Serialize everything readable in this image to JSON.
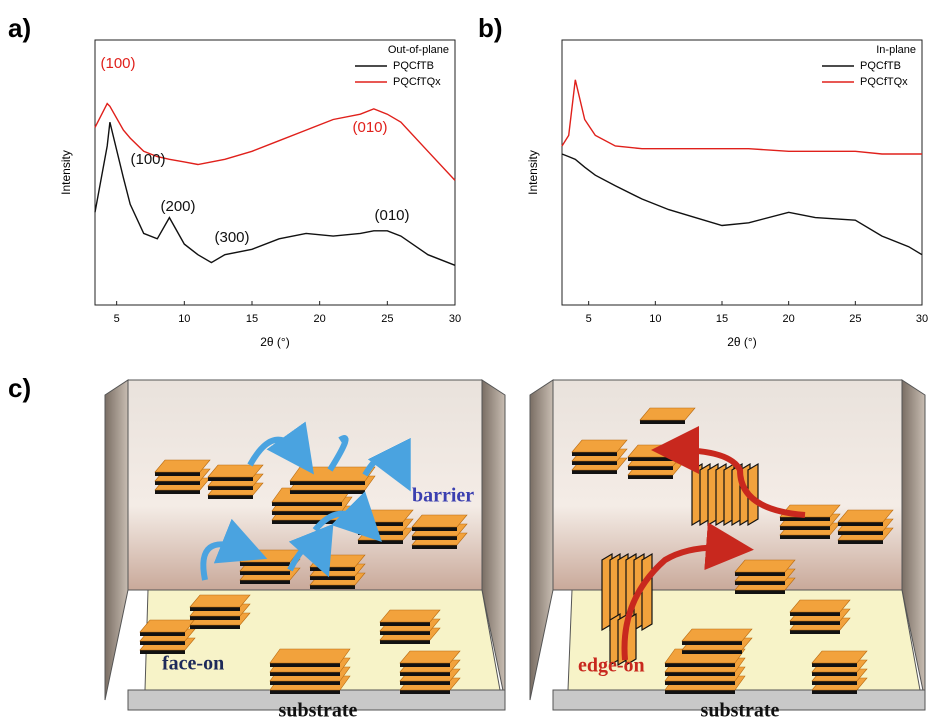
{
  "panels": {
    "a": "a)",
    "b": "b)",
    "c": "c)"
  },
  "chart_data": [
    {
      "type": "line",
      "xlabel": "2θ (°)",
      "ylabel": "Intensity",
      "xlim": [
        3.4,
        30
      ],
      "ylim": [
        0,
        100
      ],
      "xticks": [
        5,
        10,
        15,
        20,
        25,
        30
      ],
      "legend_title": "Out-of-plane",
      "legend": "upper right",
      "x": [
        3.4,
        4.3,
        4.5,
        5.5,
        6,
        7,
        8,
        8.9,
        10,
        11,
        12,
        13,
        15,
        17,
        19,
        21,
        23,
        24,
        25,
        26,
        28,
        30
      ],
      "series": [
        {
          "name": "PQCfTB",
          "color": "#111111",
          "values": [
            35,
            60,
            69,
            48,
            38,
            27,
            25,
            33,
            23,
            19,
            16,
            19,
            21,
            25,
            27,
            26,
            27,
            28,
            28,
            26,
            19,
            15
          ]
        },
        {
          "name": "PQCfTQx",
          "color": "#e0201b",
          "values": [
            67,
            76,
            75,
            66,
            63,
            58,
            56,
            55,
            54,
            53,
            54,
            55,
            58,
            62,
            66,
            70,
            72,
            74,
            72,
            69,
            58,
            47
          ]
        }
      ],
      "annotations": [
        {
          "text": "(100)",
          "color": "#e0201b"
        },
        {
          "text": "(100)",
          "color": "#111111"
        },
        {
          "text": "(200)",
          "color": "#111111"
        },
        {
          "text": "(300)",
          "color": "#111111"
        },
        {
          "text": "(010)",
          "color": "#111111"
        },
        {
          "text": "(010)",
          "color": "#e0201b"
        }
      ]
    },
    {
      "type": "line",
      "xlabel": "2θ (°)",
      "ylabel": "Intensity",
      "xlim": [
        3,
        30
      ],
      "ylim": [
        0,
        100
      ],
      "xticks": [
        5,
        10,
        15,
        20,
        25,
        30
      ],
      "legend_title": "In-plane",
      "legend": "upper right",
      "x": [
        3,
        3.5,
        4,
        4.7,
        5.5,
        7,
        9,
        11,
        13,
        15,
        17,
        20,
        22,
        25,
        27,
        29,
        30
      ],
      "series": [
        {
          "name": "PQCfTB",
          "color": "#111111",
          "values": [
            57,
            56,
            55,
            52,
            49,
            45,
            40,
            36,
            33,
            30,
            31,
            35,
            33,
            32,
            26,
            22,
            19
          ]
        },
        {
          "name": "PQCfTQx",
          "color": "#e0201b",
          "values": [
            60,
            64,
            85,
            70,
            64,
            60,
            59,
            59,
            59,
            59,
            59,
            58,
            58,
            58,
            57,
            57,
            57
          ]
        }
      ],
      "annotations": []
    }
  ],
  "schematic": {
    "barrier": "barrier",
    "face_on": "face-on",
    "edge_on": "edge-on",
    "substrate_left": "substrate",
    "substrate_right": "substrate"
  }
}
